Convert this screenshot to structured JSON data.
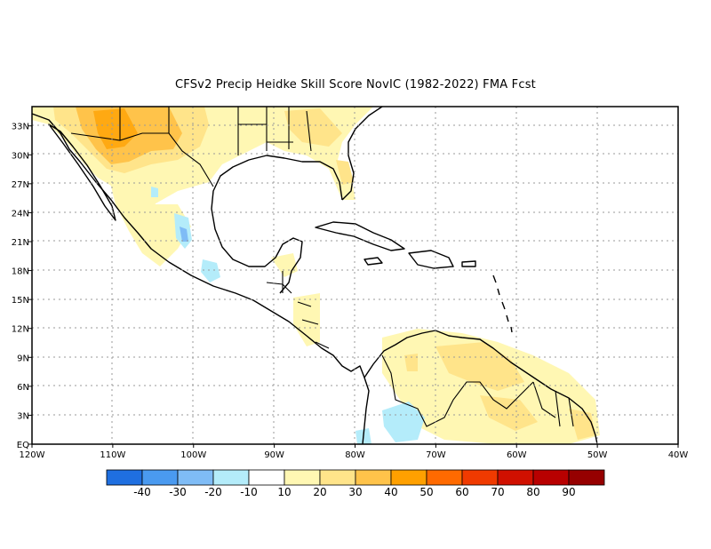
{
  "title": "CFSv2 Precip Heidke Skill Score NovIC (1982-2022) FMA Fcst",
  "map": {
    "lon_range": [
      -120,
      -40
    ],
    "lat_range": [
      0,
      35
    ],
    "x_ticks": [
      "120W",
      "110W",
      "100W",
      "90W",
      "80W",
      "70W",
      "60W",
      "50W",
      "40W"
    ],
    "y_ticks": [
      "EQ",
      "3N",
      "6N",
      "9N",
      "12N",
      "15N",
      "18N",
      "21N",
      "24N",
      "27N",
      "30N",
      "33N"
    ],
    "grid": "dotted"
  },
  "colorbar": {
    "colors": [
      "#1f6fe0",
      "#4a9af0",
      "#7fbcf6",
      "#b4ecfa",
      "#ffffff",
      "#fff7b3",
      "#ffe48a",
      "#ffc34a",
      "#ffa000",
      "#ff6a00",
      "#f03a00",
      "#d01000",
      "#b80000",
      "#960000"
    ],
    "labels": [
      "-40",
      "-30",
      "-20",
      "-10",
      "10",
      "20",
      "30",
      "40",
      "50",
      "60",
      "70",
      "80",
      "90"
    ]
  },
  "colors": {
    "light_yellow": "#fff7b3",
    "yellow": "#ffe48a",
    "orange": "#ffc34a",
    "dark_orange": "#ffa000",
    "light_blue": "#b4ecfa",
    "blue": "#7fbcf6"
  }
}
